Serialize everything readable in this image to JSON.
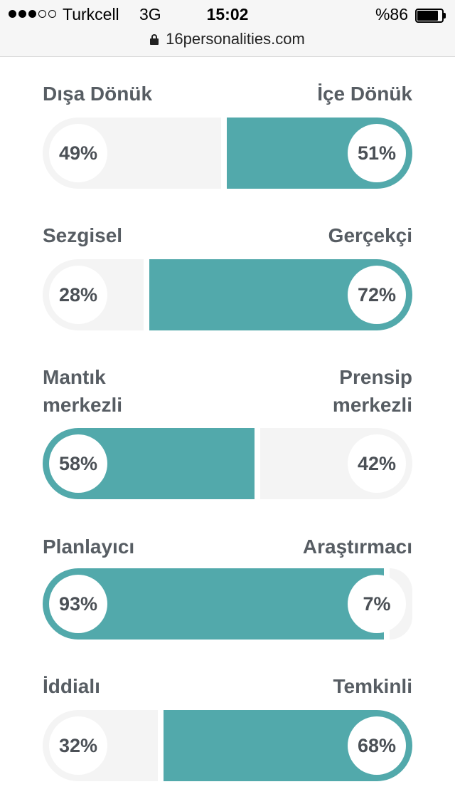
{
  "status_bar": {
    "signal_dots": 5,
    "signal_active": 3,
    "carrier": "Turkcell",
    "network": "3G",
    "time": "15:02",
    "battery_text": "%86",
    "battery_level": 0.86
  },
  "browser": {
    "url": "16personalities.com",
    "secure_icon": "lock-icon"
  },
  "colors": {
    "accent": "#52a9ab",
    "track": "#f4f4f4",
    "label_text": "#575d63"
  },
  "traits": [
    {
      "left_label": "Dışa Dönük",
      "right_label": "İçe Dönük",
      "left_pct": 49,
      "right_pct": 51,
      "left_text": "49%",
      "right_text": "51%",
      "dominant": "right"
    },
    {
      "left_label": "Sezgisel",
      "right_label": "Gerçekçi",
      "left_pct": 28,
      "right_pct": 72,
      "left_text": "28%",
      "right_text": "72%",
      "dominant": "right"
    },
    {
      "left_label": "Mantık merkezli",
      "right_label": "Prensip merkezli",
      "left_pct": 58,
      "right_pct": 42,
      "left_text": "58%",
      "right_text": "42%",
      "dominant": "left"
    },
    {
      "left_label": "Planlayıcı",
      "right_label": "Araştırmacı",
      "left_pct": 93,
      "right_pct": 7,
      "left_text": "93%",
      "right_text": "7%",
      "dominant": "left"
    },
    {
      "left_label": "İddialı",
      "right_label": "Temkinli",
      "left_pct": 32,
      "right_pct": 68,
      "left_text": "32%",
      "right_text": "68%",
      "dominant": "right"
    }
  ]
}
